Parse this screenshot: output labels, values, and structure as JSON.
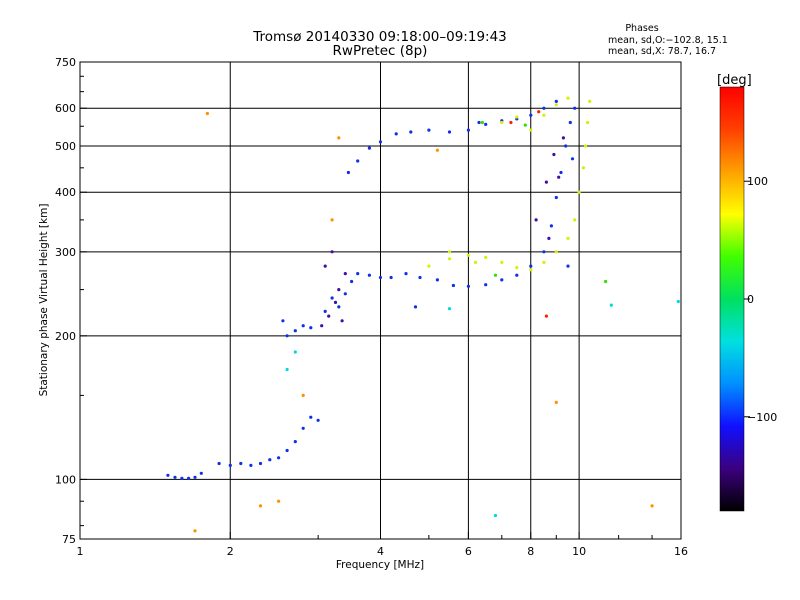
{
  "chart_data": {
    "type": "scatter",
    "title": "Tromsø 20140330 09:18:00–09:19:43",
    "subtitle": "RwPretec (8p)",
    "xlabel": "Frequency [MHz]",
    "ylabel": "Stationary phase Virtual Height [km]",
    "x_scale": "log2",
    "y_scale": "log",
    "xlim": [
      1,
      16
    ],
    "ylim": [
      75,
      750
    ],
    "x_ticks": [
      1,
      2,
      4,
      6,
      8,
      10,
      16
    ],
    "x_tick_labels": [
      "1",
      "2",
      "4",
      "6",
      "8",
      "10",
      "16"
    ],
    "y_ticks": [
      75,
      100,
      200,
      300,
      400,
      500,
      600,
      750
    ],
    "y_tick_labels": [
      "75",
      "100",
      "200",
      "300",
      "400",
      "500",
      "600",
      "750"
    ],
    "grid": true,
    "legend": {
      "title": "Phases",
      "lines": [
        "mean, sd,O:−102.8, 15.1",
        "mean, sd,X: 78.7, 16.7"
      ],
      "placement": "top-right"
    },
    "colorbar": {
      "label": "[deg]",
      "range": [
        -180,
        180
      ],
      "ticks": [
        100,
        0,
        -100
      ],
      "tick_labels": [
        "100",
        "0",
        "−100"
      ],
      "colors": [
        "#000000",
        "#3b0080",
        "#1010ff",
        "#0090ff",
        "#00e0e0",
        "#00e060",
        "#40ff00",
        "#ffff00",
        "#ffa000",
        "#ff4000",
        "#ff0000"
      ]
    },
    "series": [
      {
        "color": "#1030e8",
        "points": [
          [
            1.5,
            102
          ],
          [
            1.55,
            101
          ],
          [
            1.6,
            100.5
          ],
          [
            1.65,
            100.5
          ],
          [
            1.7,
            101
          ],
          [
            1.75,
            103
          ],
          [
            1.9,
            108
          ],
          [
            2,
            107
          ],
          [
            2.1,
            108
          ],
          [
            2.2,
            107
          ],
          [
            2.3,
            108
          ],
          [
            2.4,
            110
          ],
          [
            2.5,
            111
          ],
          [
            2.6,
            115
          ],
          [
            2.7,
            120
          ],
          [
            2.8,
            128
          ],
          [
            2.9,
            135
          ],
          [
            3,
            133
          ],
          [
            2.55,
            215
          ],
          [
            2.6,
            200
          ],
          [
            2.7,
            205
          ],
          [
            2.8,
            210
          ],
          [
            2.9,
            208
          ],
          [
            3.1,
            225
          ],
          [
            3.2,
            240
          ],
          [
            3.3,
            230
          ],
          [
            3.4,
            245
          ],
          [
            3.5,
            260
          ],
          [
            3.6,
            270
          ],
          [
            3.8,
            268
          ],
          [
            4,
            265
          ],
          [
            4.2,
            265
          ],
          [
            4.5,
            270
          ],
          [
            4.8,
            265
          ],
          [
            5.2,
            262
          ],
          [
            5.6,
            255
          ],
          [
            6,
            254
          ],
          [
            6.5,
            256
          ],
          [
            7,
            262
          ],
          [
            7.5,
            268
          ],
          [
            8,
            280
          ],
          [
            8.5,
            300
          ],
          [
            8.8,
            340
          ],
          [
            9,
            390
          ],
          [
            9.2,
            440
          ],
          [
            9.4,
            500
          ],
          [
            9.6,
            560
          ],
          [
            9.8,
            600
          ],
          [
            9.7,
            470
          ],
          [
            3.45,
            440
          ],
          [
            3.6,
            465
          ],
          [
            3.8,
            495
          ],
          [
            4,
            510
          ],
          [
            4.3,
            530
          ],
          [
            4.6,
            535
          ],
          [
            5,
            540
          ],
          [
            5.5,
            535
          ],
          [
            6,
            540
          ],
          [
            6.5,
            555
          ],
          [
            7,
            565
          ],
          [
            7.5,
            570
          ],
          [
            8,
            580
          ],
          [
            8.5,
            600
          ],
          [
            9,
            620
          ],
          [
            6.3,
            560
          ],
          [
            4.7,
            230
          ],
          [
            9.5,
            280
          ]
        ]
      },
      {
        "color": "#4010a0",
        "points": [
          [
            3.05,
            210
          ],
          [
            3.1,
            280
          ],
          [
            3.2,
            300
          ],
          [
            3.3,
            250
          ],
          [
            3.4,
            270
          ],
          [
            3.15,
            220
          ],
          [
            3.25,
            235
          ],
          [
            3.35,
            215
          ],
          [
            8.2,
            350
          ],
          [
            8.6,
            420
          ],
          [
            8.9,
            480
          ],
          [
            9.1,
            430
          ],
          [
            9.3,
            520
          ],
          [
            8.7,
            320
          ]
        ]
      },
      {
        "color": "#d8f000",
        "points": [
          [
            5,
            280
          ],
          [
            5.5,
            290
          ],
          [
            6,
            295
          ],
          [
            6.5,
            292
          ],
          [
            7,
            285
          ],
          [
            7.5,
            278
          ],
          [
            8,
            275
          ],
          [
            8.5,
            285
          ],
          [
            9,
            300
          ],
          [
            9.5,
            320
          ],
          [
            9.8,
            350
          ],
          [
            10,
            400
          ],
          [
            10.2,
            450
          ],
          [
            10.3,
            500
          ],
          [
            10.4,
            560
          ],
          [
            10.5,
            620
          ],
          [
            8,
            540
          ],
          [
            8.5,
            580
          ],
          [
            9,
            610
          ],
          [
            9.5,
            630
          ],
          [
            7,
            560
          ],
          [
            7.5,
            575
          ],
          [
            5.5,
            300
          ],
          [
            6.2,
            285
          ]
        ]
      },
      {
        "color": "#30e000",
        "points": [
          [
            6.4,
            560
          ],
          [
            6.8,
            268
          ],
          [
            7.8,
            553
          ],
          [
            11.3,
            260
          ]
        ]
      },
      {
        "color": "#00d8e0",
        "points": [
          [
            2.7,
            185
          ],
          [
            6.8,
            84
          ],
          [
            5.5,
            228
          ],
          [
            11.6,
            232
          ],
          [
            15.8,
            236
          ],
          [
            2.6,
            170
          ]
        ]
      },
      {
        "color": "#ff9000",
        "points": [
          [
            1.8,
            585
          ],
          [
            3.3,
            520
          ],
          [
            5.2,
            490
          ],
          [
            9,
            145
          ],
          [
            14,
            88
          ],
          [
            2.3,
            88
          ],
          [
            2.5,
            90
          ],
          [
            1.7,
            78
          ],
          [
            2.8,
            150
          ],
          [
            3.2,
            350
          ]
        ]
      },
      {
        "color": "#ff2000",
        "points": [
          [
            7.3,
            560
          ],
          [
            8.6,
            220
          ],
          [
            8.3,
            590
          ]
        ]
      }
    ]
  }
}
